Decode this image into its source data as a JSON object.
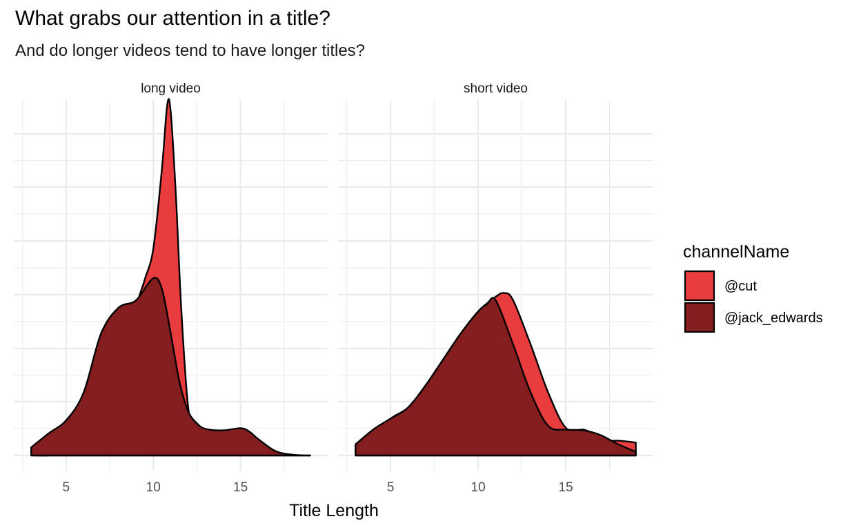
{
  "title": "What grabs our attention in a title?",
  "subtitle": "And do longer videos tend to have longer titles?",
  "colors": {
    "@cut": "#e83c3f",
    "@jack_edwards": "#841d1d",
    "outline": "#000000",
    "grid": "#ebebeb"
  },
  "chart_data": {
    "type": "area",
    "subtype": "density",
    "xlabel": "Title Length",
    "ylabel": "",
    "xlim": [
      2.0,
      20.0
    ],
    "xticks": [
      5,
      10,
      15
    ],
    "ylim": [
      0,
      1.0
    ],
    "y_tick_labels_shown": false,
    "grid": true,
    "legend": {
      "title": "channelName",
      "position": "right",
      "entries": [
        "@cut",
        "@jack_edwards"
      ]
    },
    "facets": [
      {
        "label": "long video",
        "series": [
          {
            "name": "@cut",
            "x": [
              3,
              4,
              5,
              6,
              7,
              8,
              8.5,
              9,
              9.5,
              10,
              10.5,
              10.8,
              11,
              11.3,
              11.6,
              12,
              12.5,
              13,
              14,
              15,
              16,
              17,
              18,
              19
            ],
            "y": [
              0,
              0,
              0.004,
              0.008,
              0.03,
              0.09,
              0.19,
              0.39,
              0.475,
              0.56,
              0.78,
              0.95,
              0.93,
              0.7,
              0.4,
              0.13,
              0.03,
              0.006,
              0.001,
              0,
              0,
              0,
              0,
              0
            ]
          },
          {
            "name": "@jack_edwards",
            "x": [
              3,
              4,
              5,
              6,
              7,
              8,
              9,
              10,
              10.5,
              11,
              11.5,
              12,
              12.5,
              13,
              14,
              15,
              15.5,
              16,
              17,
              18,
              19
            ],
            "y": [
              0.022,
              0.06,
              0.095,
              0.17,
              0.33,
              0.4,
              0.42,
              0.48,
              0.45,
              0.33,
              0.2,
              0.12,
              0.087,
              0.072,
              0.068,
              0.074,
              0.065,
              0.045,
              0.012,
              0.002,
              0
            ]
          }
        ]
      },
      {
        "label": "short video",
        "series": [
          {
            "name": "@cut",
            "x": [
              3,
              5,
              6,
              7,
              8,
              9,
              10,
              11,
              11.5,
              12,
              13,
              14,
              15,
              16,
              16.5,
              17,
              18,
              19
            ],
            "y": [
              0.03,
              0.1,
              0.13,
              0.19,
              0.26,
              0.33,
              0.39,
              0.43,
              0.44,
              0.42,
              0.3,
              0.17,
              0.075,
              0.07,
              0.06,
              0.04,
              0.04,
              0.035
            ]
          },
          {
            "name": "@jack_edwards",
            "x": [
              3,
              4,
              5,
              6,
              7,
              8,
              9,
              10,
              10.5,
              11,
              12,
              13,
              14,
              15,
              16,
              17,
              18,
              19
            ],
            "y": [
              0.03,
              0.07,
              0.1,
              0.13,
              0.19,
              0.26,
              0.33,
              0.39,
              0.41,
              0.42,
              0.3,
              0.17,
              0.08,
              0.07,
              0.068,
              0.055,
              0.03,
              0.01
            ]
          }
        ]
      }
    ]
  }
}
